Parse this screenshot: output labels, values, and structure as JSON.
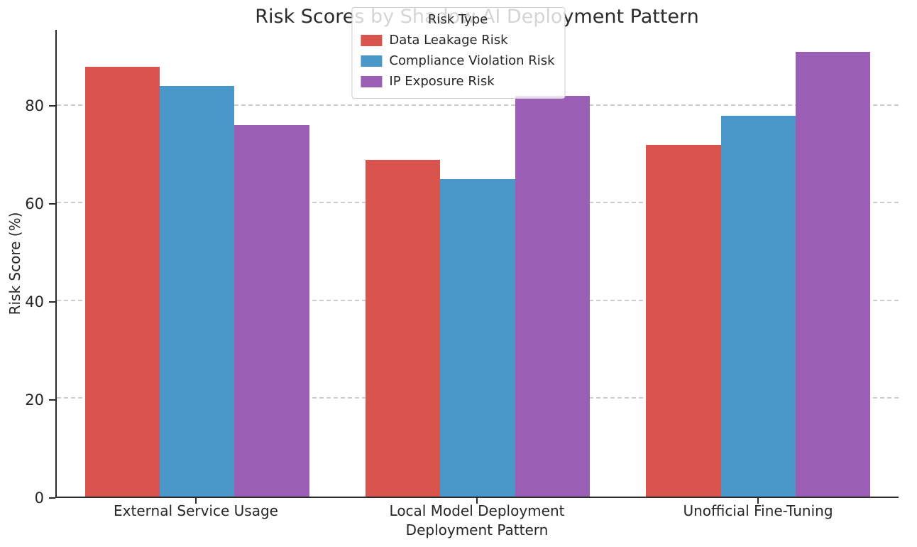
{
  "title": "Risk Scores by Shadow AI Deployment Pattern",
  "chart_data": {
    "type": "bar",
    "title": "Risk Scores by Shadow AI Deployment Pattern",
    "xlabel": "Deployment Pattern",
    "ylabel": "Risk Score (%)",
    "categories": [
      "External Service Usage",
      "Local Model Deployment",
      "Unofficial Fine-Tuning"
    ],
    "series": [
      {
        "name": "Data Leakage Risk",
        "color": "#d9544d",
        "values": [
          88,
          69,
          72
        ]
      },
      {
        "name": "Compliance Violation Risk",
        "color": "#4a98c9",
        "values": [
          84,
          65,
          78
        ]
      },
      {
        "name": "IP Exposure Risk",
        "color": "#9a5fb5",
        "values": [
          76,
          82,
          91
        ]
      }
    ],
    "ylim": [
      0,
      95.55
    ],
    "yticks": [
      0,
      20,
      40,
      60,
      80
    ],
    "legend_title": "Risk Type",
    "legend_position": "upper center",
    "grid": "horizontal dashed"
  }
}
